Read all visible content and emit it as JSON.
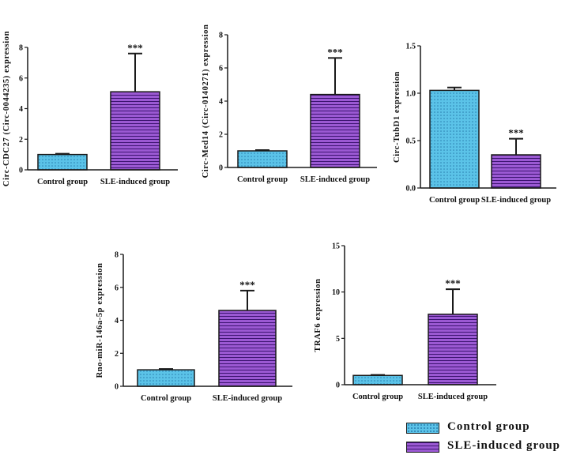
{
  "chart_data": [
    {
      "type": "bar",
      "ylabel": "Circ-CDC27 (Circ-0044235) expression",
      "categories": [
        "Control group",
        "SLE-induced group"
      ],
      "values": [
        1.0,
        5.1
      ],
      "error_upper": [
        0.05,
        2.5
      ],
      "ylim": [
        0,
        8
      ],
      "yticks": [
        "0",
        "2",
        "4",
        "6",
        "8"
      ],
      "annotations": [
        "",
        "***"
      ]
    },
    {
      "type": "bar",
      "ylabel": "Circ-Med14 (Circ-0140271) expression",
      "categories": [
        "Control group",
        "SLE-induced group"
      ],
      "values": [
        1.0,
        4.4
      ],
      "error_upper": [
        0.05,
        2.2
      ],
      "ylim": [
        0,
        8
      ],
      "yticks": [
        "0",
        "2",
        "4",
        "6",
        "8"
      ],
      "annotations": [
        "",
        "***"
      ]
    },
    {
      "type": "bar",
      "ylabel": "Circ-TubD1 expression",
      "categories": [
        "Control group",
        "SLE-induced group"
      ],
      "values": [
        1.03,
        0.35
      ],
      "error_upper": [
        0.03,
        0.17
      ],
      "ylim": [
        0,
        1.5
      ],
      "yticks": [
        "0.0",
        "0.5",
        "1.0",
        "1.5"
      ],
      "annotations": [
        "",
        "***"
      ]
    },
    {
      "type": "bar",
      "ylabel": "Rno-miR-146a-5p expression",
      "categories": [
        "Control group",
        "SLE-induced group"
      ],
      "values": [
        1.0,
        4.6
      ],
      "error_upper": [
        0.05,
        1.2
      ],
      "ylim": [
        0,
        8
      ],
      "yticks": [
        "0",
        "2",
        "4",
        "6",
        "8"
      ],
      "annotations": [
        "",
        "***"
      ]
    },
    {
      "type": "bar",
      "ylabel": "TRAF6 expression",
      "categories": [
        "Control group",
        "SLE-induced group"
      ],
      "values": [
        1.0,
        7.6
      ],
      "error_upper": [
        0.05,
        2.7
      ],
      "ylim": [
        0,
        15
      ],
      "yticks": [
        "0",
        "5",
        "10",
        "15"
      ],
      "annotations": [
        "",
        "***"
      ]
    }
  ],
  "legend": {
    "items": [
      {
        "label": "Control group",
        "pattern": "dots",
        "color": "#5bc3e8"
      },
      {
        "label": "SLE-induced group",
        "pattern": "hlines",
        "color": "#9b59d3"
      }
    ]
  },
  "colors": {
    "control_fill": "#5bc3e8",
    "control_dots": "#2a7fb0",
    "sle_fill": "#9b59d3",
    "sle_lines": "#3c1470",
    "axis": "#1a1a1a"
  }
}
